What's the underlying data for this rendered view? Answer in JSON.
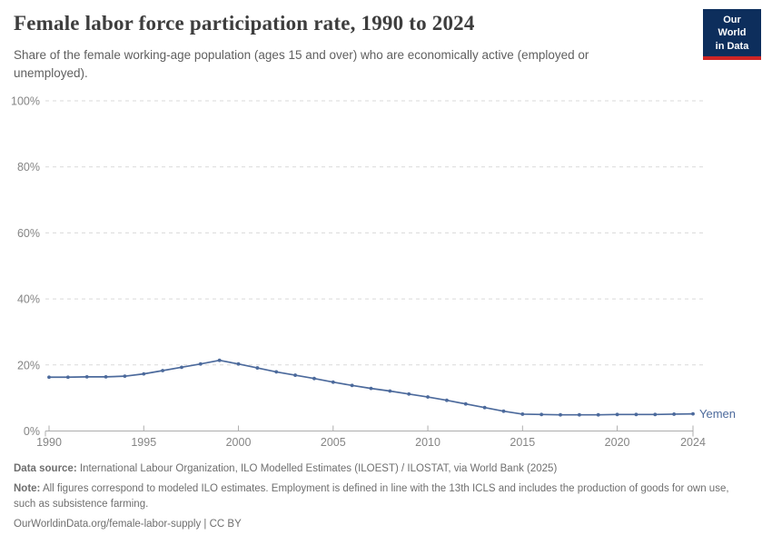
{
  "header": {
    "title": "Female labor force participation rate, 1990 to 2024",
    "subtitle": "Share of the female working-age population (ages 15 and over) who are economically active (employed or unemployed).",
    "logo_line1": "Our World",
    "logo_line2": "in Data"
  },
  "chart_data": {
    "type": "line",
    "title": "Female labor force participation rate, 1990 to 2024",
    "xlabel": "",
    "ylabel": "",
    "ylim": [
      0,
      100
    ],
    "yticks": [
      0,
      20,
      40,
      60,
      80,
      100
    ],
    "ytick_suffix": "%",
    "xticks": [
      1990,
      1995,
      2000,
      2005,
      2010,
      2015,
      2020,
      2024
    ],
    "grid": "horizontal-dashed",
    "legend_position": "end-of-line-label",
    "x": [
      1990,
      1991,
      1992,
      1993,
      1994,
      1995,
      1996,
      1997,
      1998,
      1999,
      2000,
      2001,
      2002,
      2003,
      2004,
      2005,
      2006,
      2007,
      2008,
      2009,
      2010,
      2011,
      2012,
      2013,
      2014,
      2015,
      2016,
      2017,
      2018,
      2019,
      2020,
      2021,
      2022,
      2023,
      2024
    ],
    "series": [
      {
        "name": "Yemen",
        "color": "#4c6a9c",
        "values": [
          16.3,
          16.3,
          16.4,
          16.4,
          16.6,
          17.3,
          18.3,
          19.3,
          20.3,
          21.4,
          20.3,
          19.1,
          17.9,
          16.9,
          15.9,
          14.8,
          13.8,
          12.9,
          12.1,
          11.2,
          10.3,
          9.3,
          8.2,
          7.1,
          6.0,
          5.1,
          5.0,
          4.9,
          4.9,
          4.9,
          5.0,
          5.0,
          5.0,
          5.1,
          5.2
        ]
      }
    ]
  },
  "footer": {
    "data_source_label": "Data source:",
    "data_source_text": "International Labour Organization, ILO Modelled Estimates (ILOEST) / ILOSTAT, via World Bank (2025)",
    "note_label": "Note:",
    "note_text": "All figures correspond to modeled ILO estimates. Employment is defined in line with the 13th ICLS and includes the production of goods for own use, such as subsistence farming.",
    "citation": "OurWorldinData.org/female-labor-supply | CC BY"
  },
  "colors": {
    "line": "#4c6a9c",
    "grid": "#d9d9d9",
    "axis": "#adadad",
    "tick_text": "#858585",
    "title_text": "#3d3d3d",
    "subtitle_text": "#5f5f5f",
    "footer_text": "#6f6f6f",
    "logo_bg": "#0d2e5c",
    "logo_red": "#cf2525"
  }
}
